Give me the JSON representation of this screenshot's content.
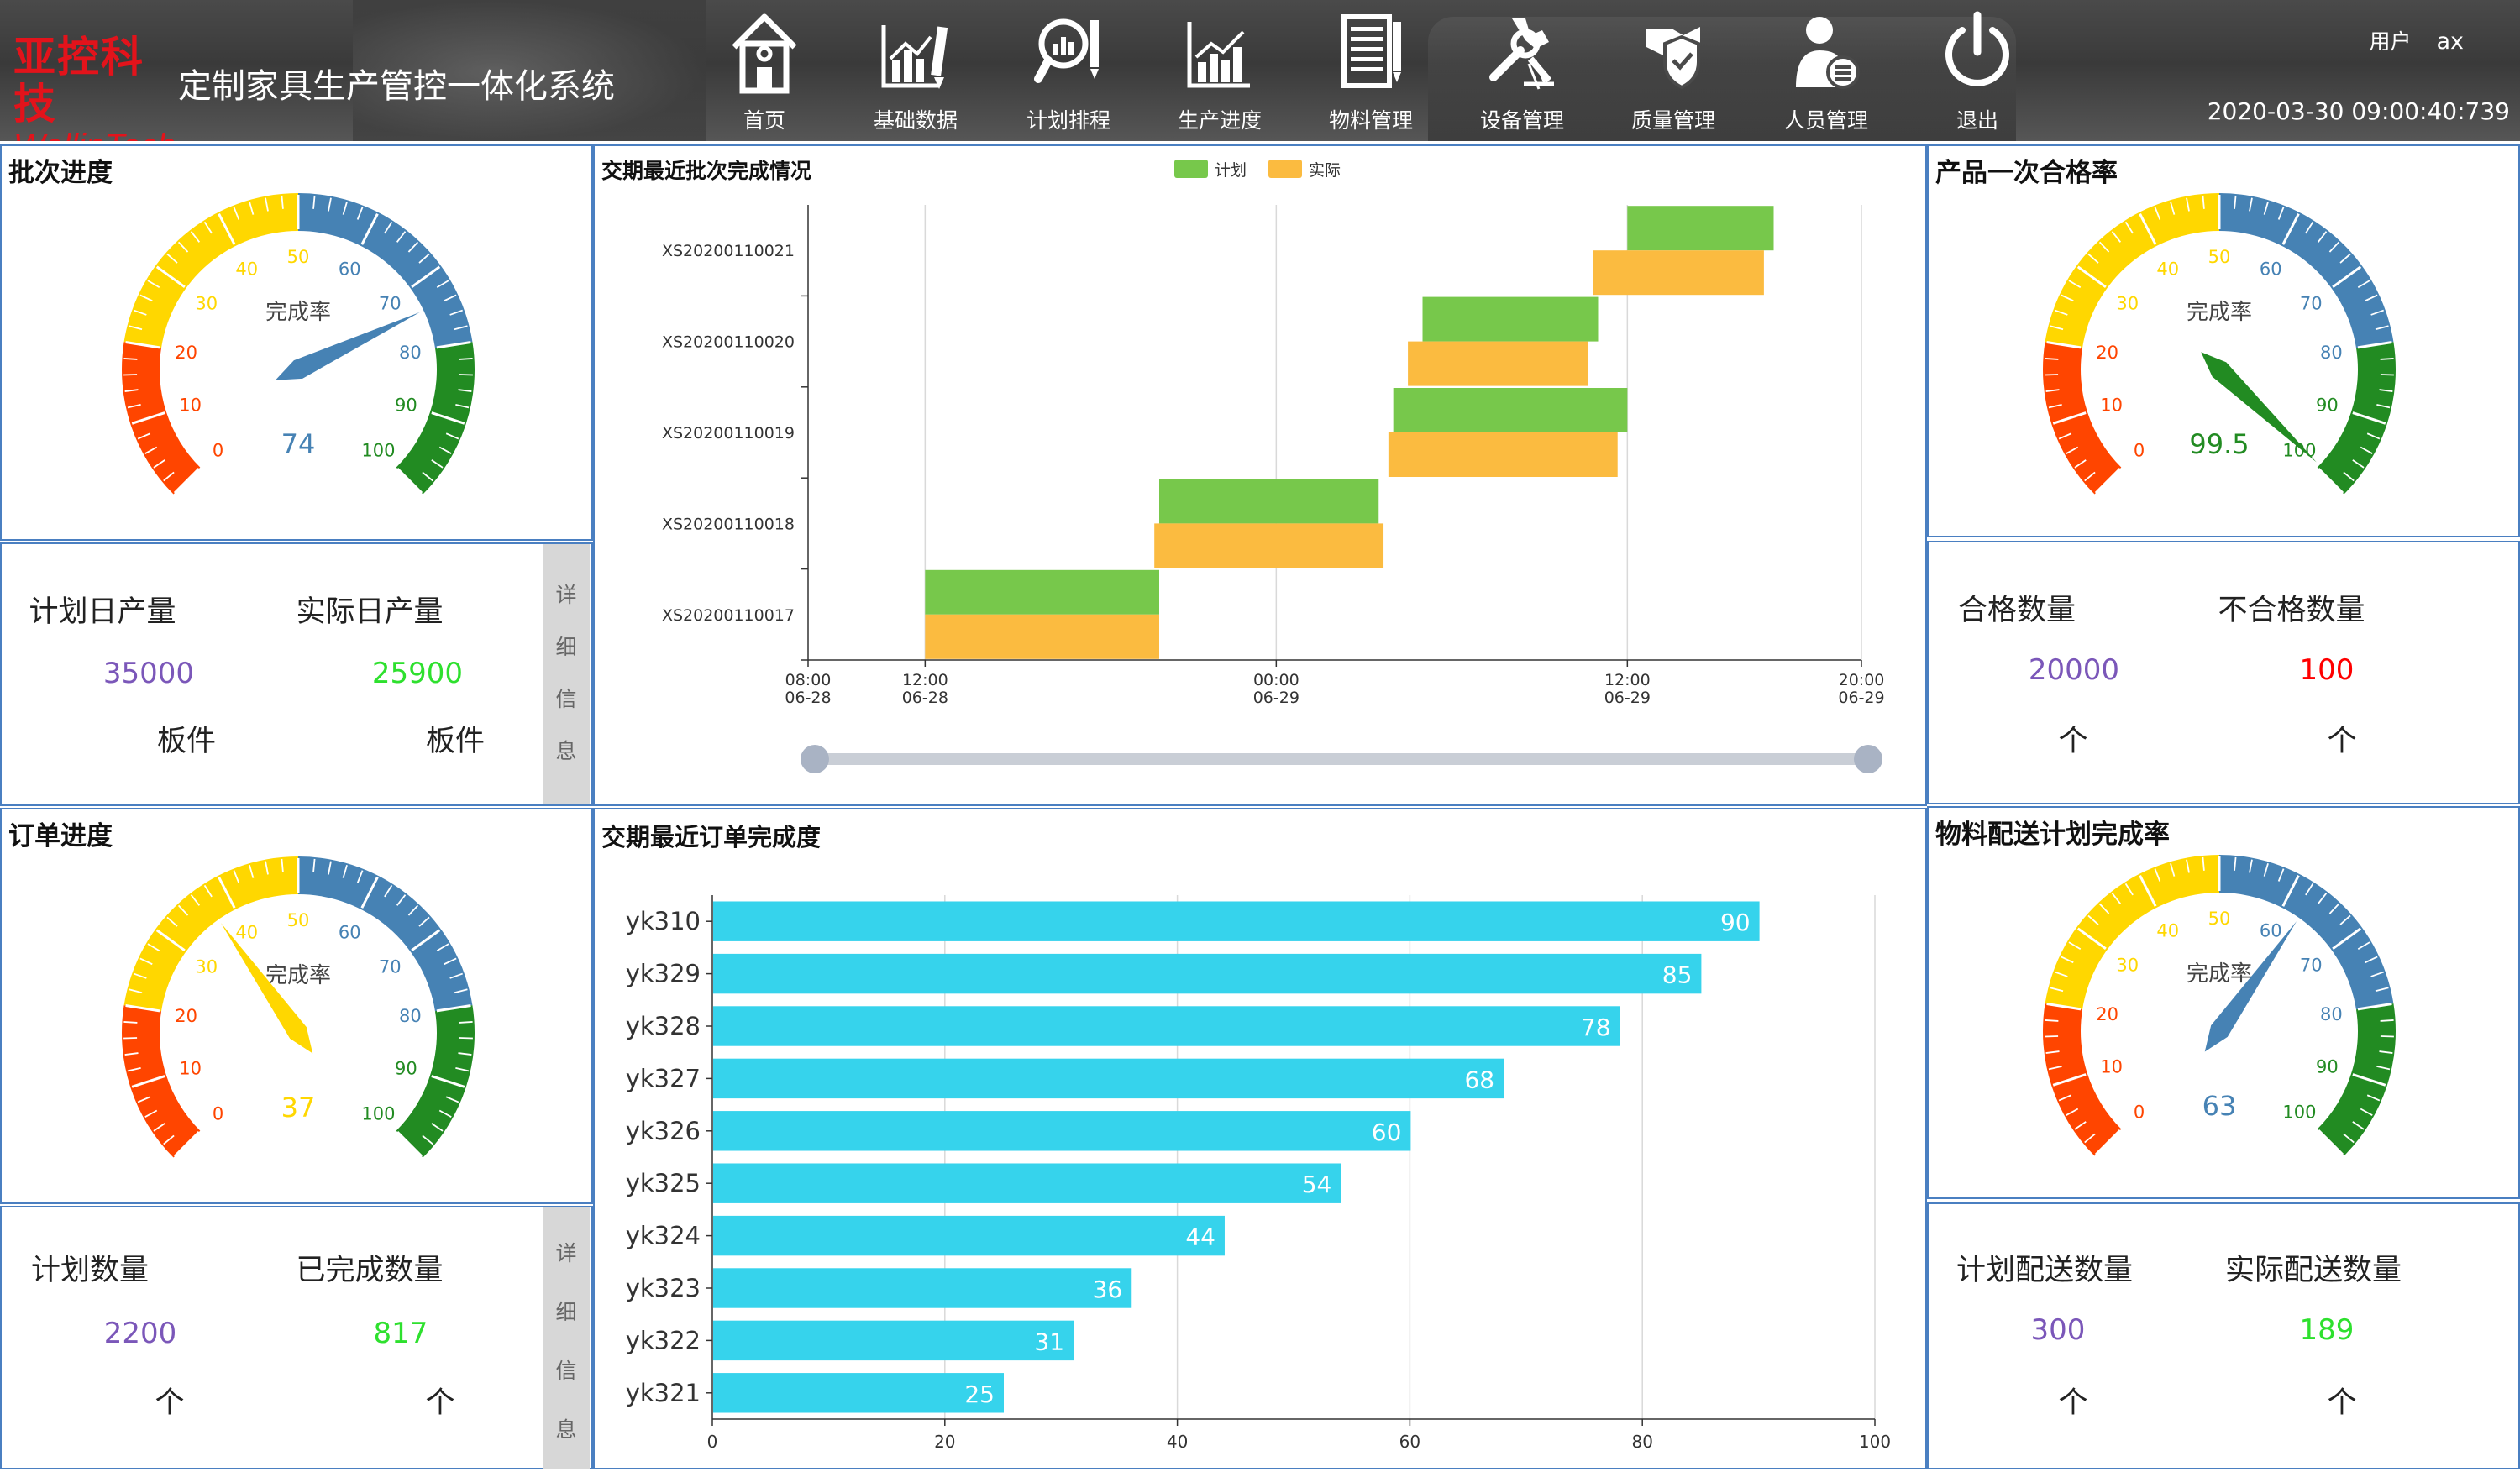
{
  "header": {
    "logo_cn": "亚控科技",
    "logo_en": "WellinTech",
    "title": "定制家具生产管控一体化系统",
    "nav": [
      {
        "label": "首页",
        "icon": "home-icon"
      },
      {
        "label": "基础数据",
        "icon": "bar-chart-pen-icon"
      },
      {
        "label": "计划排程",
        "icon": "magnifier-chart-icon"
      },
      {
        "label": "生产进度",
        "icon": "line-chart-icon"
      },
      {
        "label": "物料管理",
        "icon": "document-list-icon"
      },
      {
        "label": "设备管理",
        "icon": "tools-icon"
      },
      {
        "label": "质量管理",
        "icon": "shield-hand-icon"
      },
      {
        "label": "人员管理",
        "icon": "person-card-icon"
      },
      {
        "label": "退出",
        "icon": "power-icon"
      }
    ],
    "user_label": "用户",
    "user_name": "ax",
    "datetime": "2020-03-30   09:00:40:739"
  },
  "gauge_common": {
    "center_label": "完成率",
    "ticks": [
      "0",
      "10",
      "20",
      "30",
      "40",
      "50",
      "60",
      "70",
      "80",
      "90",
      "100"
    ],
    "colors": {
      "red": "#ff4500",
      "yellow": "#ffd700",
      "blue": "#4682b4",
      "green": "#228b22"
    }
  },
  "batch_progress": {
    "title": "批次进度",
    "value": 74,
    "value_text": "74",
    "plan_label": "计划日产量",
    "actual_label": "实际日产量",
    "plan_value": "35000",
    "actual_value": "25900",
    "plan_unit": "板件",
    "actual_unit": "板件",
    "detail_tab": [
      "详",
      "细",
      "信",
      "息"
    ]
  },
  "order_progress": {
    "title": "订单进度",
    "value": 37,
    "value_text": "37",
    "plan_label": "计划数量",
    "done_label": "已完成数量",
    "plan_value": "2200",
    "done_value": "817",
    "plan_unit": "个",
    "done_unit": "个",
    "detail_tab": [
      "详",
      "细",
      "信",
      "息"
    ]
  },
  "first_pass_rate": {
    "title": "产品一次合格率",
    "value": 99.5,
    "value_text": "99.5",
    "ok_label": "合格数量",
    "ng_label": "不合格数量",
    "ok_value": "20000",
    "ng_value": "100",
    "ok_unit": "个",
    "ng_unit": "个"
  },
  "material_delivery": {
    "title": "物料配送计划完成率",
    "value": 63,
    "value_text": "63",
    "plan_label": "计划配送数量",
    "actual_label": "实际配送数量",
    "plan_value": "300",
    "actual_value": "189",
    "plan_unit": "个",
    "actual_unit": "个"
  },
  "chart_data": [
    {
      "type": "gantt",
      "title": "交期最近批次完成情况",
      "legend": [
        {
          "name": "计划",
          "color": "#77c84b"
        },
        {
          "name": "实际",
          "color": "#fbbb40"
        }
      ],
      "legend_position": "top-center",
      "categories": [
        "XS20200110017",
        "XS20200110018",
        "XS20200110019",
        "XS20200110020",
        "XS20200110021"
      ],
      "x_ticks": [
        {
          "time": "08:00",
          "date": "06-28"
        },
        {
          "time": "12:00",
          "date": "06-28"
        },
        {
          "time": "00:00",
          "date": "06-29"
        },
        {
          "time": "12:00",
          "date": "06-29"
        },
        {
          "time": "20:00",
          "date": "06-29"
        }
      ],
      "xlim": [
        "06-28 08:00",
        "06-29 20:00"
      ],
      "series": [
        {
          "name": "计划",
          "values": [
            [
              "06-28 12:00",
              "06-28 20:00"
            ],
            [
              "06-28 20:00",
              "06-29 03:30"
            ],
            [
              "06-29 04:00",
              "06-29 12:00"
            ],
            [
              "06-29 05:00",
              "06-29 11:00"
            ],
            [
              "06-29 12:00",
              "06-29 17:00"
            ]
          ]
        },
        {
          "name": "实际",
          "values": [
            [
              "06-28 12:00",
              "06-28 20:00"
            ],
            [
              "06-28 19:50",
              "06-29 03:40"
            ],
            [
              "06-29 03:50",
              "06-29 11:40"
            ],
            [
              "06-29 04:30",
              "06-29 10:40"
            ],
            [
              "06-29 10:50",
              "06-29 16:40"
            ]
          ]
        }
      ],
      "grid": "vertical",
      "slider_range": [
        0,
        1
      ]
    },
    {
      "type": "bar",
      "orientation": "horizontal",
      "title": "交期最近订单完成度",
      "categories": [
        "yk310",
        "yk329",
        "yk328",
        "yk327",
        "yk326",
        "yk325",
        "yk324",
        "yk323",
        "yk322",
        "yk321"
      ],
      "values": [
        90,
        85,
        78,
        68,
        60,
        54,
        44,
        36,
        31,
        25
      ],
      "xlim": [
        0,
        100
      ],
      "x_ticks": [
        "0",
        "20",
        "40",
        "60",
        "80",
        "100"
      ],
      "color": "#36d3ec",
      "grid": "vertical"
    }
  ]
}
